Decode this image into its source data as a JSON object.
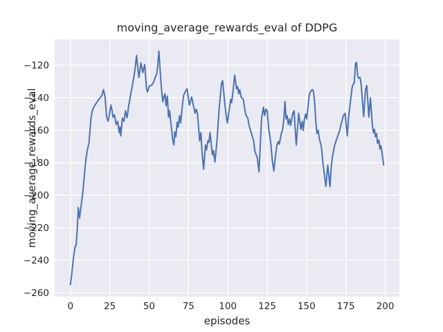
{
  "title": "moving_average_rewards_eval of DDPG",
  "xlabel": "episodes",
  "ylabel": "moving_average_rewards_eval",
  "colors": {
    "figure_bg": "#ffffff",
    "plot_bg": "#eaeaf2",
    "grid": "#ffffff",
    "line": "#4c72b0",
    "text": "#262626"
  },
  "chart_data": {
    "type": "line",
    "title": "moving_average_rewards_eval of DDPG",
    "xlabel": "episodes",
    "ylabel": "moving_average_rewards_eval",
    "grid": true,
    "legend_position": "none",
    "xlim": [
      -10,
      209
    ],
    "ylim": [
      -262.4,
      -104.1
    ],
    "xticks": [
      0,
      25,
      50,
      75,
      100,
      125,
      150,
      175,
      200
    ],
    "yticks": [
      -120,
      -140,
      -160,
      -180,
      -200,
      -220,
      -240,
      -260
    ],
    "series": [
      {
        "name": "DDPG",
        "color": "#4c72b0",
        "x": [
          0,
          1,
          2,
          3,
          3.6,
          4.3,
          5,
          5.8,
          7,
          8,
          9,
          10,
          11,
          11.8,
          13,
          14,
          15,
          16,
          17,
          18,
          19,
          20,
          21,
          22,
          23,
          24,
          25,
          25.7,
          26.5,
          27,
          28,
          29,
          30,
          31,
          31.5,
          32,
          33,
          34,
          35,
          36,
          37,
          38,
          39.5,
          41,
          42,
          43.5,
          44.8,
          46,
          47.2,
          48.3,
          49,
          50,
          51,
          52,
          53,
          54,
          54.8,
          55.4,
          56.2,
          57,
          57.5,
          58,
          58.7,
          59.4,
          60.1,
          60.8,
          61.6,
          62.3,
          63,
          64,
          65,
          65.7,
          66.3,
          67,
          67.8,
          68.5,
          69.3,
          70,
          71,
          71.9,
          73.1,
          74.1,
          75.6,
          77,
          78.5,
          79.2,
          79.9,
          80.7,
          82.1,
          82.9,
          83.6,
          84.6,
          85.8,
          86.5,
          87.3,
          88,
          88.7,
          90.2,
          90.9,
          91.8,
          93.1,
          94.5,
          96,
          96.7,
          98,
          99,
          99.7,
          101.1,
          101.8,
          102.4,
          103.3,
          104.4,
          105.5,
          106.2,
          106.9,
          107.6,
          108.4,
          109.8,
          110.6,
          111.3,
          112.8,
          113.5,
          115,
          116.4,
          117.2,
          118.6,
          119.8,
          120.8,
          121.5,
          122.7,
          123.3,
          124.2,
          125,
          126,
          126.7,
          127.4,
          128.2,
          129.2,
          130.4,
          131.1,
          132,
          132.7,
          133.4,
          134.1,
          134.8,
          135.6,
          136.3,
          137,
          137.7,
          138.4,
          139.2,
          139.9,
          141.3,
          142.1,
          142.8,
          143.5,
          145,
          146.4,
          147.2,
          147.9,
          148.6,
          149.4,
          150.1,
          151.6,
          152.3,
          153.7,
          154.4,
          155.2,
          155.9,
          156.6,
          157.4,
          158.1,
          159.5,
          160.3,
          161.2,
          162.3,
          163.5,
          164.9,
          165.7,
          166.4,
          167.9,
          169.3,
          170.8,
          172.3,
          173.4,
          174.5,
          175.9,
          176.7,
          177.4,
          178.9,
          179.6,
          180.3,
          181.1,
          181.8,
          182.5,
          183.2,
          184,
          184.7,
          186.3,
          187.5,
          188.3,
          189.6,
          190.6,
          191.8,
          192.5,
          193.2,
          193.8,
          194.5,
          195.1,
          196,
          196.6,
          197.3,
          199
        ],
        "y": [
          -255,
          -247,
          -238,
          -231.5,
          -231,
          -222,
          -207.5,
          -214,
          -205,
          -197,
          -186,
          -176.5,
          -171,
          -167.8,
          -153,
          -147.5,
          -145.5,
          -144,
          -142.5,
          -141,
          -140,
          -138.5,
          -135,
          -139.5,
          -152,
          -154.5,
          -149,
          -144.5,
          -148,
          -152,
          -150.5,
          -156.5,
          -154.5,
          -161.5,
          -158,
          -163.5,
          -152.5,
          -154.5,
          -148,
          -152.3,
          -145,
          -139.5,
          -131.5,
          -123,
          -114,
          -127.5,
          -118.5,
          -124.5,
          -119.5,
          -134,
          -136.5,
          -133,
          -132.5,
          -131.8,
          -130,
          -127,
          -125.5,
          -121,
          -111.3,
          -123,
          -130,
          -136,
          -142.5,
          -139.5,
          -137.5,
          -145,
          -139,
          -152,
          -148,
          -157,
          -166,
          -169,
          -161,
          -164,
          -155,
          -158,
          -151,
          -155.5,
          -146,
          -138.5,
          -136,
          -134.5,
          -144.5,
          -139.5,
          -146.5,
          -149.5,
          -147,
          -149.5,
          -166.5,
          -161.5,
          -173,
          -184,
          -169,
          -172,
          -166.5,
          -167.5,
          -161.5,
          -175,
          -172.5,
          -179.5,
          -166.5,
          -146.5,
          -131,
          -129.5,
          -143,
          -151,
          -155.5,
          -146,
          -141,
          -143,
          -136,
          -126,
          -134.5,
          -133,
          -137.5,
          -135,
          -139.5,
          -141,
          -146,
          -150,
          -153,
          -157,
          -162,
          -166.5,
          -173,
          -176.5,
          -185.5,
          -165,
          -152,
          -145.8,
          -151,
          -147,
          -148,
          -159.5,
          -163.5,
          -169,
          -178,
          -185,
          -175,
          -169.5,
          -167,
          -168.5,
          -165,
          -161.5,
          -159.5,
          -153.5,
          -142.3,
          -153,
          -151,
          -156.5,
          -153,
          -157,
          -149.5,
          -148,
          -159.5,
          -169,
          -149.5,
          -159.5,
          -154.5,
          -160,
          -153.5,
          -150,
          -153,
          -139.5,
          -136.5,
          -134.9,
          -136,
          -143.5,
          -154.5,
          -162,
          -160,
          -165,
          -170.5,
          -179,
          -186,
          -194.5,
          -181.5,
          -194.7,
          -183,
          -176.5,
          -169,
          -165,
          -161,
          -155,
          -151,
          -149.5,
          -163.5,
          -152,
          -146.5,
          -134,
          -131.5,
          -131,
          -119,
          -118.2,
          -126.5,
          -128,
          -127.5,
          -131.5,
          -151.5,
          -135,
          -132.5,
          -151.9,
          -140,
          -156.5,
          -161.5,
          -159.5,
          -164,
          -162,
          -168,
          -166,
          -171.5,
          -169.5,
          -181.3
        ]
      }
    ]
  }
}
